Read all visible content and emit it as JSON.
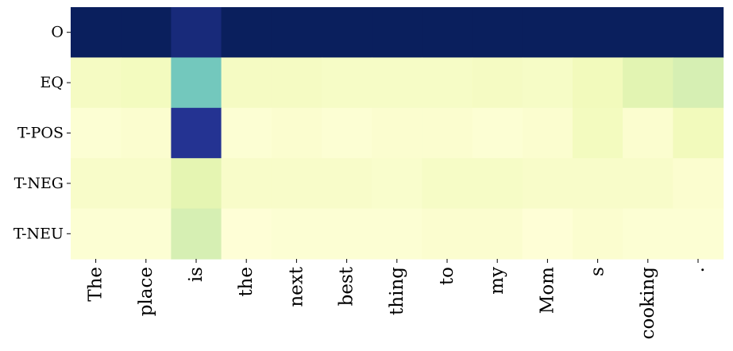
{
  "chart_data": {
    "type": "heatmap",
    "title": "",
    "xlabel": "",
    "ylabel": "",
    "rows": [
      "O",
      "EQ",
      "T-POS",
      "T-NEG",
      "T-NEU"
    ],
    "columns": [
      "The",
      "place",
      "is",
      "the",
      "next",
      "best",
      "thing",
      "to",
      "my",
      "Mom",
      "s",
      "cooking",
      "."
    ],
    "values": [
      [
        0.99,
        0.99,
        0.93,
        0.99,
        0.99,
        0.99,
        0.99,
        0.99,
        0.99,
        0.99,
        0.99,
        0.99,
        0.99
      ],
      [
        0.07,
        0.08,
        0.4,
        0.07,
        0.07,
        0.06,
        0.06,
        0.06,
        0.07,
        0.06,
        0.09,
        0.16,
        0.2
      ],
      [
        0.02,
        0.03,
        0.88,
        0.02,
        0.03,
        0.02,
        0.03,
        0.03,
        0.02,
        0.03,
        0.08,
        0.03,
        0.09
      ],
      [
        0.05,
        0.05,
        0.15,
        0.05,
        0.05,
        0.05,
        0.04,
        0.06,
        0.06,
        0.05,
        0.05,
        0.05,
        0.03
      ],
      [
        0.02,
        0.02,
        0.2,
        0.01,
        0.02,
        0.02,
        0.02,
        0.03,
        0.03,
        0.01,
        0.03,
        0.02,
        0.02
      ]
    ],
    "vmin": 0,
    "vmax": 1,
    "colormap": "YlGnBu",
    "colorbar": false,
    "grid": false,
    "legend": "none"
  }
}
